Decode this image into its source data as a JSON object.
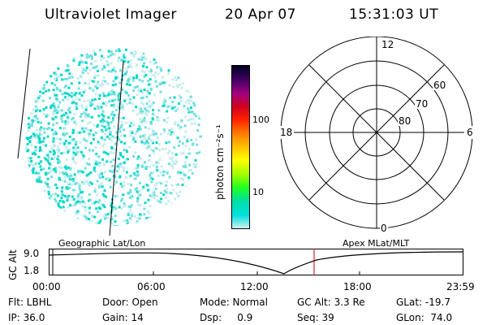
{
  "header": {
    "instrument": "Ultraviolet Imager",
    "date": "20 Apr 07",
    "time": "15:31:03 UT"
  },
  "colorbar": {
    "unit_label": "photon cm⁻²s⁻¹",
    "ticks": [
      "100",
      "10"
    ],
    "scale": "log",
    "colors": [
      "#000020",
      "#3a0060",
      "#a00080",
      "#d00020",
      "#ff2000",
      "#ff8000",
      "#ffc000",
      "#ffff00",
      "#a0ff00",
      "#20ff20",
      "#00e0a0",
      "#00e0e0",
      "#d0f0f0"
    ]
  },
  "polar_plot": {
    "mlt_labels": {
      "top": "12",
      "left": "18",
      "right": "6",
      "bottom": "0"
    },
    "lat_labels": [
      "60",
      "70",
      "80"
    ]
  },
  "timeline": {
    "left_label": "Geographic Lat/Lon",
    "right_label": "Apex MLat/MLT",
    "y_axis_label": "GC Alt",
    "y_ticks": [
      "9.0",
      "1.8"
    ],
    "x_ticks": [
      "00:00",
      "06:00",
      "12:00",
      "18:00",
      "23:59"
    ],
    "marker_color": "#c00000"
  },
  "status": {
    "flt": "Flt: LBHL",
    "ip": "IP: 36.0",
    "door": "Door: Open",
    "gain": "Gain: 14",
    "mode": "Mode: Normal",
    "dsp": "Dsp:     0.9",
    "gc_alt": "GC Alt: 3.3 Re",
    "seq": "Seq: 39",
    "glat": "GLat: -19.7",
    "glon": "GLon:  74.0"
  }
}
